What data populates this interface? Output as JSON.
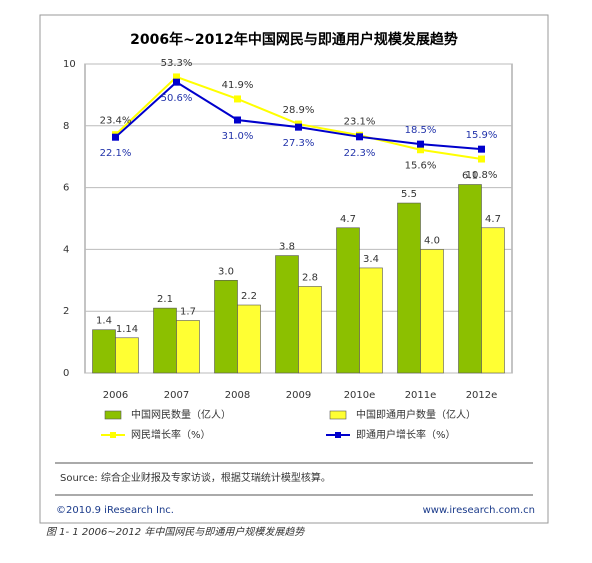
{
  "chart_data": {
    "type": "bar",
    "title": "2006年~2012年中国网民与即通用户规模发展趋势",
    "categories": [
      "2006",
      "2007",
      "2008",
      "2009",
      "2010e",
      "2011e",
      "2012e"
    ],
    "ylim": [
      0,
      10
    ],
    "yticks": [
      0,
      2,
      4,
      6,
      8,
      10
    ],
    "grid": true,
    "y2lim": [
      -100,
      60
    ],
    "series": [
      {
        "name": "中国网民数量（亿人）",
        "type": "bar",
        "color": "#8cc000",
        "values": [
          1.4,
          2.1,
          3.0,
          3.8,
          4.7,
          5.5,
          6.1
        ],
        "value_labels": [
          "1.4",
          "2.1",
          "3.0",
          "3.8",
          "4.7",
          "5.5",
          "6.1"
        ]
      },
      {
        "name": "中国即通用户数量（亿人）",
        "type": "bar",
        "color": "#ffff33",
        "values": [
          1.14,
          1.7,
          2.2,
          2.8,
          3.4,
          4.0,
          4.7
        ],
        "value_labels": [
          "1.14",
          "1.7",
          "2.2",
          "2.8",
          "3.4",
          "4.0",
          "4.7"
        ]
      },
      {
        "name": "网民增长率（%）",
        "type": "line",
        "axis": "y2",
        "color": "#ffff00",
        "values": [
          23.4,
          53.3,
          41.9,
          28.9,
          23.1,
          15.6,
          10.8
        ],
        "value_labels": [
          "23.4%",
          "53.3%",
          "41.9%",
          "28.9%",
          "23.1%",
          "15.6%",
          "10.8%"
        ]
      },
      {
        "name": "即通用户增长率（%）",
        "type": "line",
        "axis": "y2",
        "color": "#0000cc",
        "values": [
          22.1,
          50.6,
          31.0,
          27.3,
          22.3,
          18.5,
          15.9
        ],
        "value_labels": [
          "22.1%",
          "50.6%",
          "31.0%",
          "27.3%",
          "22.3%",
          "18.5%",
          "15.9%"
        ]
      }
    ],
    "source": "Source: 综合企业财报及专家访谈，根据艾瑞统计模型核算。",
    "copyright": "©2010.9 iResearch Inc.",
    "website": "www.iresearch.com.cn",
    "caption": "图 1- 1 2006~2012 年中国网民与即通用户规模发展趋势"
  }
}
